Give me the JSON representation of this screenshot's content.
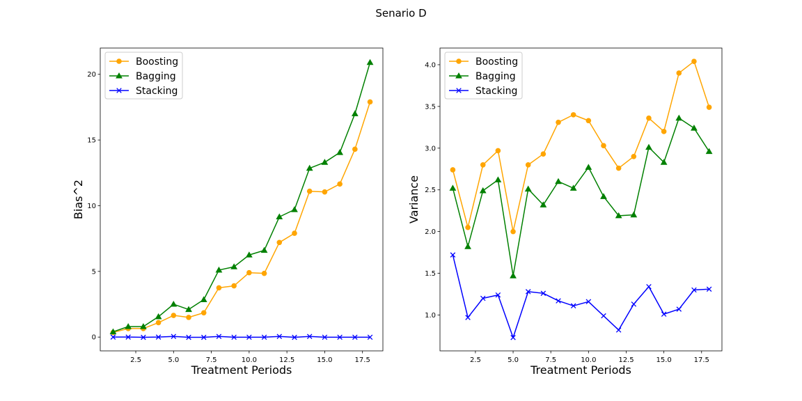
{
  "figure": {
    "suptitle": "Senario D"
  },
  "chart_data": [
    {
      "type": "line",
      "title": "",
      "xlabel": "Treatment Periods",
      "ylabel": "Bias^2",
      "xlim": [
        0.15,
        18.85
      ],
      "ylim": [
        -1.05,
        22.0
      ],
      "xticks": [
        2.5,
        5.0,
        7.5,
        10.0,
        12.5,
        15.0,
        17.5
      ],
      "xtick_labels": [
        "2.5",
        "5.0",
        "7.5",
        "10.0",
        "12.5",
        "15.0",
        "17.5"
      ],
      "yticks": [
        0,
        5,
        10,
        15,
        20
      ],
      "ytick_labels": [
        "0",
        "5",
        "10",
        "15",
        "20"
      ],
      "grid": false,
      "legend_position": "top-left",
      "x": [
        1,
        2,
        3,
        4,
        5,
        6,
        7,
        8,
        9,
        10,
        11,
        12,
        13,
        14,
        15,
        16,
        17,
        18
      ],
      "series": [
        {
          "name": "Boosting",
          "color": "#ffa500",
          "marker": "circle",
          "values": [
            0.35,
            0.65,
            0.65,
            1.1,
            1.65,
            1.5,
            1.85,
            3.75,
            3.9,
            4.9,
            4.85,
            7.2,
            7.9,
            11.1,
            11.05,
            11.65,
            14.3,
            17.9
          ]
        },
        {
          "name": "Bagging",
          "color": "#008000",
          "marker": "triangle",
          "values": [
            0.4,
            0.8,
            0.8,
            1.55,
            2.5,
            2.1,
            2.85,
            5.1,
            5.35,
            6.25,
            6.6,
            9.15,
            9.7,
            12.85,
            13.3,
            14.05,
            17.0,
            20.9
          ]
        },
        {
          "name": "Stacking",
          "color": "#0000ff",
          "marker": "x",
          "values": [
            0.0,
            0.0,
            -0.02,
            0.0,
            0.05,
            -0.02,
            -0.02,
            0.05,
            -0.01,
            -0.01,
            -0.01,
            0.05,
            -0.02,
            0.05,
            -0.01,
            -0.01,
            -0.01,
            -0.01
          ]
        }
      ]
    },
    {
      "type": "line",
      "title": "",
      "xlabel": "Treatment Periods",
      "ylabel": "Variance",
      "xlim": [
        0.15,
        18.85
      ],
      "ylim": [
        0.57,
        4.2
      ],
      "xticks": [
        2.5,
        5.0,
        7.5,
        10.0,
        12.5,
        15.0,
        17.5
      ],
      "xtick_labels": [
        "2.5",
        "5.0",
        "7.5",
        "10.0",
        "12.5",
        "15.0",
        "17.5"
      ],
      "yticks": [
        1.0,
        1.5,
        2.0,
        2.5,
        3.0,
        3.5,
        4.0
      ],
      "ytick_labels": [
        "1.0",
        "1.5",
        "2.0",
        "2.5",
        "3.0",
        "3.5",
        "4.0"
      ],
      "grid": false,
      "legend_position": "top-left",
      "x": [
        1,
        2,
        3,
        4,
        5,
        6,
        7,
        8,
        9,
        10,
        11,
        12,
        13,
        14,
        15,
        16,
        17,
        18
      ],
      "series": [
        {
          "name": "Boosting",
          "color": "#ffa500",
          "marker": "circle",
          "values": [
            2.74,
            2.05,
            2.8,
            2.97,
            2.0,
            2.8,
            2.93,
            3.31,
            3.4,
            3.33,
            3.03,
            2.76,
            2.9,
            3.36,
            3.2,
            3.9,
            4.04,
            3.49
          ]
        },
        {
          "name": "Bagging",
          "color": "#008000",
          "marker": "triangle",
          "values": [
            2.52,
            1.82,
            2.49,
            2.62,
            1.47,
            2.51,
            2.32,
            2.6,
            2.52,
            2.77,
            2.42,
            2.19,
            2.2,
            3.01,
            2.83,
            3.36,
            3.24,
            2.96
          ]
        },
        {
          "name": "Stacking",
          "color": "#0000ff",
          "marker": "x",
          "values": [
            1.72,
            0.97,
            1.2,
            1.24,
            0.73,
            1.28,
            1.26,
            1.17,
            1.11,
            1.16,
            0.99,
            0.82,
            1.13,
            1.34,
            1.01,
            1.07,
            1.3,
            1.31
          ]
        }
      ]
    }
  ]
}
